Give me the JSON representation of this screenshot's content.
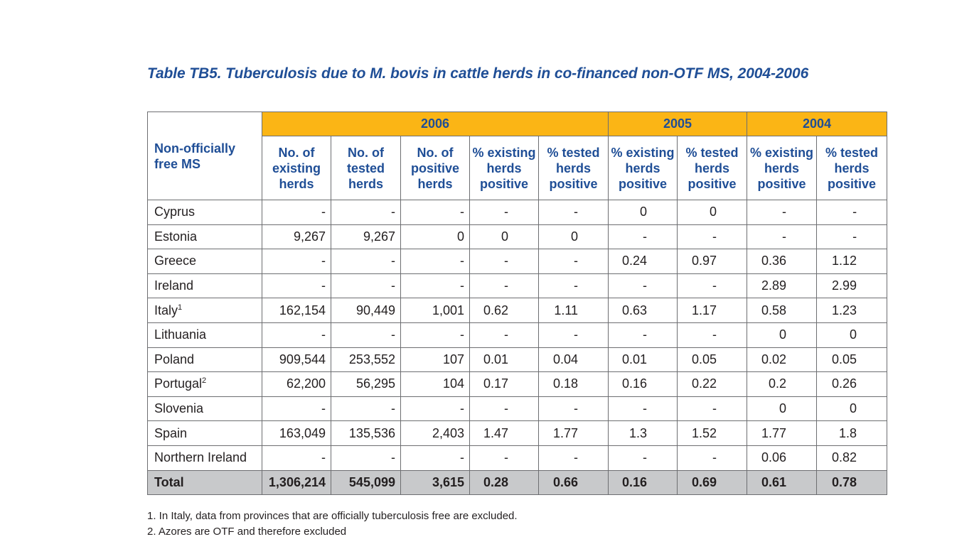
{
  "title": "Table TB5. Tuberculosis due to M. bovis in cattle herds in co-financed non-OTF MS, 2004-2006",
  "table": {
    "row_header": "Non-officially free MS",
    "years": [
      "2006",
      "2005",
      "2004"
    ],
    "columns": [
      "No. of existing herds",
      "No. of tested herds",
      "No. of positive herds",
      "% existing herds positive",
      "% tested herds positive",
      "% existing herds positive",
      "% tested herds positive",
      "% existing herds positive",
      "% tested herds positive"
    ],
    "rows": [
      {
        "ms": "Cyprus",
        "sup": "",
        "values": [
          "-",
          "-",
          "-",
          "-",
          "-",
          "0",
          "0",
          "-",
          "-"
        ]
      },
      {
        "ms": "Estonia",
        "sup": "",
        "values": [
          "9,267",
          "9,267",
          "0",
          "0",
          "0",
          "-",
          "-",
          "-",
          "-"
        ]
      },
      {
        "ms": "Greece",
        "sup": "",
        "values": [
          "-",
          "-",
          "-",
          "-",
          "-",
          "0.24",
          "0.97",
          "0.36",
          "1.12"
        ]
      },
      {
        "ms": "Ireland",
        "sup": "",
        "values": [
          "-",
          "-",
          "-",
          "-",
          "-",
          "-",
          "-",
          "2.89",
          "2.99"
        ]
      },
      {
        "ms": "Italy",
        "sup": "1",
        "values": [
          "162,154",
          "90,449",
          "1,001",
          "0.62",
          "1.11",
          "0.63",
          "1.17",
          "0.58",
          "1.23"
        ]
      },
      {
        "ms": "Lithuania",
        "sup": "",
        "values": [
          "-",
          "-",
          "-",
          "-",
          "-",
          "-",
          "-",
          "0",
          "0"
        ]
      },
      {
        "ms": "Poland",
        "sup": "",
        "values": [
          "909,544",
          "253,552",
          "107",
          "0.01",
          "0.04",
          "0.01",
          "0.05",
          "0.02",
          "0.05"
        ]
      },
      {
        "ms": "Portugal",
        "sup": "2",
        "values": [
          "62,200",
          "56,295",
          "104",
          "0.17",
          "0.18",
          "0.16",
          "0.22",
          "0.2",
          "0.26"
        ]
      },
      {
        "ms": "Slovenia",
        "sup": "",
        "values": [
          "-",
          "-",
          "-",
          "-",
          "-",
          "-",
          "-",
          "0",
          "0"
        ]
      },
      {
        "ms": "Spain",
        "sup": "",
        "values": [
          "163,049",
          "135,536",
          "2,403",
          "1.47",
          "1.77",
          "1.3",
          "1.52",
          "1.77",
          "1.8"
        ]
      },
      {
        "ms": "Northern Ireland",
        "sup": "",
        "values": [
          "-",
          "-",
          "-",
          "-",
          "-",
          "-",
          "-",
          "0.06",
          "0.82"
        ]
      }
    ],
    "total": {
      "label": "Total",
      "values": [
        "1,306,214",
        "545,099",
        "3,615",
        "0.28",
        "0.66",
        "0.16",
        "0.69",
        "0.61",
        "0.78"
      ]
    }
  },
  "footnotes": [
    "1. In Italy, data from provinces that are officially tuberculosis free are excluded.",
    "2. Azores are OTF and therefore excluded"
  ],
  "colors": {
    "title": "#1f4e96",
    "header_band": "#fbb515",
    "total_row": "#c8c9cb",
    "border": "#6d6e71"
  }
}
